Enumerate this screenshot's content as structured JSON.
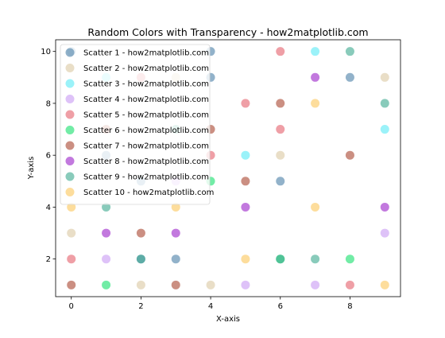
{
  "chart_data": {
    "type": "scatter",
    "title": "Random Colors with Transparency - how2matplotlib.com",
    "xlabel": "X-axis",
    "ylabel": "Y-axis",
    "xlim": [
      -0.45,
      9.45
    ],
    "ylim": [
      0.55,
      10.45
    ],
    "xticks": [
      0,
      2,
      4,
      6,
      8
    ],
    "yticks": [
      2,
      4,
      6,
      8,
      10
    ],
    "grid": false,
    "legend_position": "upper-left",
    "point_alpha": 0.6,
    "series": [
      {
        "name": "Scatter 1 - how2matplotlib.com",
        "color": "#4a7fa7",
        "points": [
          [
            0,
            10
          ],
          [
            1,
            6
          ],
          [
            2,
            5
          ],
          [
            2,
            2
          ],
          [
            3,
            2
          ],
          [
            4,
            9
          ],
          [
            4,
            10
          ],
          [
            6,
            5
          ],
          [
            8,
            9
          ]
        ]
      },
      {
        "name": "Scatter 2 - how2matplotlib.com",
        "color": "#dbc8a1",
        "points": [
          [
            0,
            3
          ],
          [
            2,
            1
          ],
          [
            3,
            9
          ],
          [
            4,
            1
          ],
          [
            6,
            6
          ],
          [
            9,
            9
          ]
        ]
      },
      {
        "name": "Scatter 3 - how2matplotlib.com",
        "color": "#59e9f5",
        "points": [
          [
            1,
            9
          ],
          [
            5,
            6
          ],
          [
            7,
            10
          ],
          [
            9,
            7
          ]
        ]
      },
      {
        "name": "Scatter 4 - how2matplotlib.com",
        "color": "#c89af3",
        "points": [
          [
            1,
            2
          ],
          [
            3,
            5
          ],
          [
            5,
            1
          ],
          [
            7,
            1
          ],
          [
            9,
            3
          ]
        ]
      },
      {
        "name": "Scatter 5 - how2matplotlib.com",
        "color": "#e55f6b",
        "points": [
          [
            0,
            2
          ],
          [
            2,
            9
          ],
          [
            4,
            6
          ],
          [
            5,
            8
          ],
          [
            6,
            10
          ],
          [
            6,
            7
          ],
          [
            8,
            1
          ]
        ]
      },
      {
        "name": "Scatter 6 - how2matplotlib.com",
        "color": "#14e06b",
        "points": [
          [
            1,
            1
          ],
          [
            4,
            5
          ],
          [
            6,
            2
          ],
          [
            8,
            2
          ]
        ]
      },
      {
        "name": "Scatter 7 - how2matplotlib.com",
        "color": "#a8452e",
        "points": [
          [
            0,
            1
          ],
          [
            1,
            7
          ],
          [
            2,
            3
          ],
          [
            3,
            1
          ],
          [
            4,
            7
          ],
          [
            5,
            5
          ],
          [
            6,
            8
          ],
          [
            8,
            6
          ]
        ]
      },
      {
        "name": "Scatter 8 - how2matplotlib.com",
        "color": "#9a1fc8",
        "points": [
          [
            1,
            3
          ],
          [
            3,
            3
          ],
          [
            5,
            4
          ],
          [
            7,
            9
          ],
          [
            9,
            4
          ]
        ]
      },
      {
        "name": "Scatter 9 - how2matplotlib.com",
        "color": "#3aa88e",
        "points": [
          [
            1,
            4
          ],
          [
            2,
            2
          ],
          [
            3,
            7
          ],
          [
            6,
            2
          ],
          [
            7,
            2
          ],
          [
            8,
            10
          ],
          [
            9,
            8
          ]
        ]
      },
      {
        "name": "Scatter 10 - how2matplotlib.com",
        "color": "#fbc65a",
        "points": [
          [
            0,
            4
          ],
          [
            3,
            4
          ],
          [
            5,
            2
          ],
          [
            7,
            4
          ],
          [
            7,
            8
          ],
          [
            9,
            1
          ]
        ]
      }
    ]
  }
}
